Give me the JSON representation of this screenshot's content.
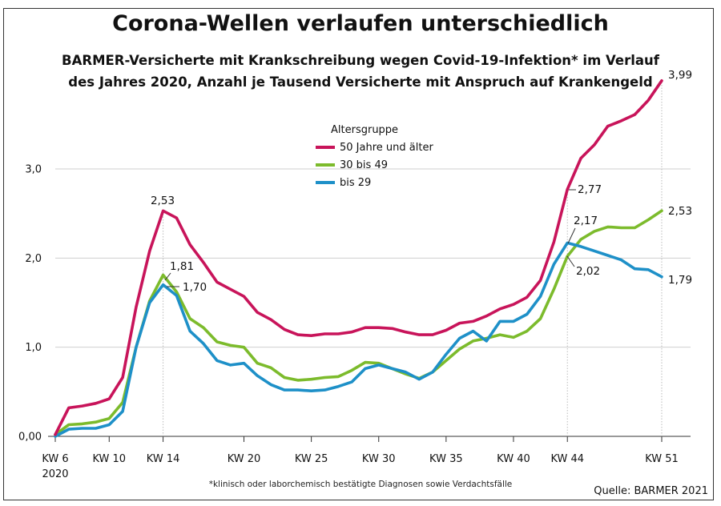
{
  "chart_data": {
    "type": "line",
    "title": "Corona-Wellen verlaufen unterschiedlich",
    "subtitle_line1": "BARMER-Versicherte mit Krankschreibung wegen Covid-19-Infektion* im Verlauf",
    "subtitle_line2": "des Jahres 2020, Anzahl je Tausend Versicherte mit Anspruch auf Krankengeld",
    "xlabel": "",
    "ylabel": "",
    "xlim": [
      6,
      51
    ],
    "ylim": [
      0,
      4
    ],
    "grid": true,
    "y_ticks": [
      {
        "value": 0,
        "label": "0,00"
      },
      {
        "value": 1,
        "label": "1,0"
      },
      {
        "value": 2,
        "label": "2,0"
      },
      {
        "value": 3,
        "label": "3,0"
      }
    ],
    "x_ticks": [
      {
        "week": 6,
        "label": "KW 6",
        "label2": "2020"
      },
      {
        "week": 10,
        "label": "KW 10"
      },
      {
        "week": 14,
        "label": "KW 14"
      },
      {
        "week": 20,
        "label": "KW 20"
      },
      {
        "week": 25,
        "label": "KW 25"
      },
      {
        "week": 30,
        "label": "KW 30"
      },
      {
        "week": 35,
        "label": "KW 35"
      },
      {
        "week": 40,
        "label": "KW 40"
      },
      {
        "week": 44,
        "label": "KW 44"
      },
      {
        "week": 51,
        "label": "KW 51"
      }
    ],
    "legend_title": "Altersgruppe",
    "legend_position": "top-center",
    "weeks": [
      6,
      7,
      8,
      9,
      10,
      11,
      12,
      13,
      14,
      15,
      16,
      17,
      18,
      19,
      20,
      21,
      22,
      23,
      24,
      25,
      26,
      27,
      28,
      29,
      30,
      31,
      32,
      33,
      34,
      35,
      36,
      37,
      38,
      39,
      40,
      41,
      42,
      43,
      44,
      45,
      46,
      47,
      48,
      49,
      50,
      51
    ],
    "series": [
      {
        "name": "50 Jahre und älter",
        "color": "#c8145a",
        "values": [
          0.02,
          0.32,
          0.34,
          0.37,
          0.42,
          0.66,
          1.45,
          2.08,
          2.53,
          2.45,
          2.15,
          1.95,
          1.73,
          1.65,
          1.57,
          1.39,
          1.31,
          1.2,
          1.14,
          1.13,
          1.15,
          1.15,
          1.17,
          1.22,
          1.22,
          1.21,
          1.17,
          1.14,
          1.14,
          1.19,
          1.27,
          1.29,
          1.35,
          1.43,
          1.48,
          1.56,
          1.75,
          2.18,
          2.77,
          3.12,
          3.27,
          3.48,
          3.54,
          3.61,
          3.77,
          3.99
        ]
      },
      {
        "name": "30 bis 49",
        "color": "#7cbb2c",
        "values": [
          0.02,
          0.13,
          0.14,
          0.16,
          0.2,
          0.38,
          1.0,
          1.52,
          1.81,
          1.62,
          1.32,
          1.22,
          1.06,
          1.02,
          1.0,
          0.82,
          0.77,
          0.66,
          0.63,
          0.64,
          0.66,
          0.67,
          0.74,
          0.83,
          0.82,
          0.76,
          0.7,
          0.65,
          0.72,
          0.85,
          0.98,
          1.07,
          1.1,
          1.14,
          1.11,
          1.18,
          1.32,
          1.65,
          2.02,
          2.21,
          2.3,
          2.35,
          2.34,
          2.34,
          2.43,
          2.53
        ]
      },
      {
        "name": "bis 29",
        "color": "#1e90c8",
        "values": [
          0.0,
          0.08,
          0.09,
          0.09,
          0.13,
          0.28,
          1.0,
          1.5,
          1.7,
          1.58,
          1.18,
          1.04,
          0.85,
          0.8,
          0.82,
          0.68,
          0.58,
          0.52,
          0.52,
          0.51,
          0.52,
          0.56,
          0.61,
          0.76,
          0.8,
          0.76,
          0.72,
          0.64,
          0.72,
          0.92,
          1.1,
          1.18,
          1.07,
          1.29,
          1.29,
          1.37,
          1.57,
          1.93,
          2.17,
          2.13,
          2.08,
          2.03,
          1.98,
          1.88,
          1.87,
          1.79
        ]
      }
    ],
    "annotations": [
      {
        "series": 0,
        "week": 14,
        "label": "2,53"
      },
      {
        "series": 1,
        "week": 14,
        "label": "1,81"
      },
      {
        "series": 2,
        "week": 14,
        "label": "1,70"
      },
      {
        "series": 0,
        "week": 44,
        "label": "2,77"
      },
      {
        "series": 2,
        "week": 44,
        "label": "2,17"
      },
      {
        "series": 1,
        "week": 44,
        "label": "2,02"
      },
      {
        "series": 0,
        "week": 51,
        "label": "3,99"
      },
      {
        "series": 1,
        "week": 51,
        "label": "2,53"
      },
      {
        "series": 2,
        "week": 51,
        "label": "1,79"
      }
    ]
  },
  "footnote": "*klinisch oder laborchemisch bestätigte Diagnosen sowie Verdachtsfälle",
  "source": "Quelle: BARMER 2021"
}
